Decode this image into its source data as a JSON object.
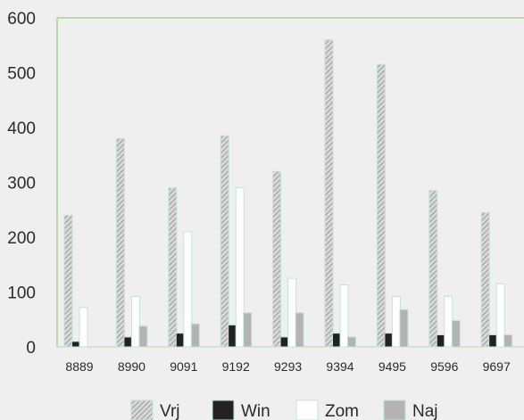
{
  "chart_data": {
    "type": "bar",
    "categories": [
      "8889",
      "8990",
      "9091",
      "9192",
      "9293",
      "9394",
      "9495",
      "9596",
      "9697"
    ],
    "series": [
      {
        "name": "Vrj",
        "values": [
          240,
          380,
          290,
          385,
          320,
          560,
          515,
          285,
          245
        ],
        "fill": "hatch"
      },
      {
        "name": "Win",
        "values": [
          10,
          18,
          25,
          40,
          18,
          25,
          25,
          22,
          22
        ],
        "fill": "#222222"
      },
      {
        "name": "Zom",
        "values": [
          72,
          92,
          210,
          290,
          125,
          113,
          92,
          92,
          115
        ],
        "fill": "#ffffff"
      },
      {
        "name": "Naj",
        "values": [
          0,
          38,
          42,
          62,
          62,
          18,
          68,
          48,
          22
        ],
        "fill": "#b3b3b3"
      }
    ],
    "y_ticks": [
      "0",
      "100",
      "200",
      "300",
      "400",
      "500",
      "600"
    ],
    "ylim": [
      0,
      600
    ],
    "title": "",
    "xlabel": "",
    "ylabel": "",
    "grid": false,
    "legend_position": "bottom",
    "colors": {
      "background": "#efefef",
      "axis": "#b9d9a9",
      "outline": "#bfe6d5"
    }
  }
}
